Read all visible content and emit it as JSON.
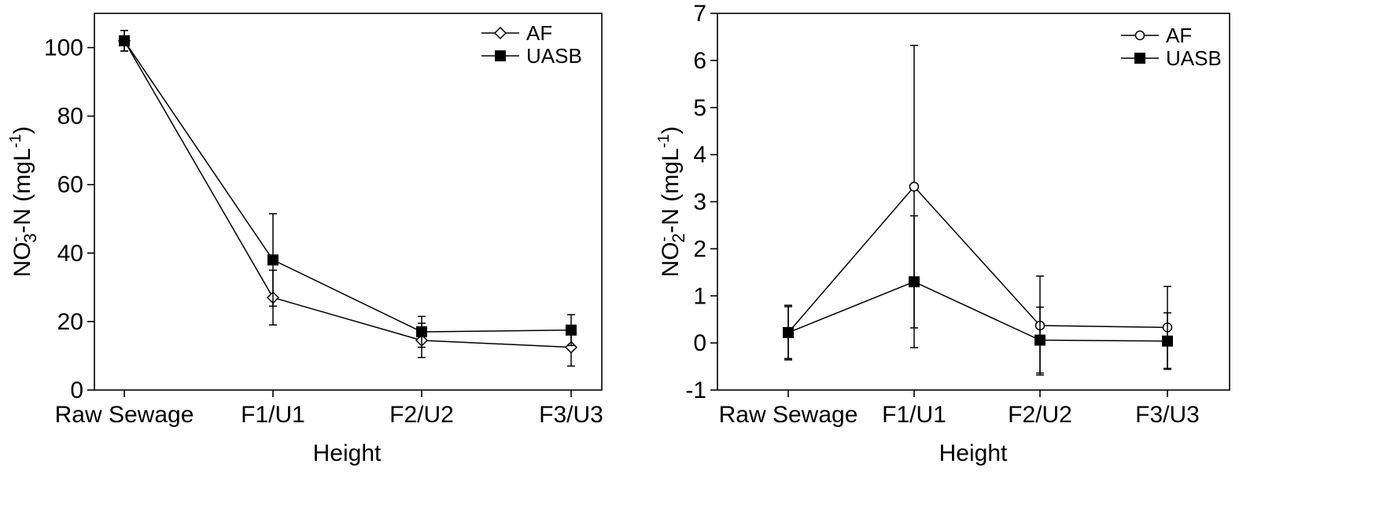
{
  "chart_data": [
    {
      "type": "line",
      "xlabel": "Height",
      "ylabel_parts": {
        "base": "NO",
        "sup": "-",
        "sub": "3",
        "rest": "-N (mgL",
        "unit_sup": "-1",
        "close": ")"
      },
      "categories": [
        "Raw Sewage",
        "F1/U1",
        "F2/U2",
        "F3/U3"
      ],
      "ylim": [
        0,
        110
      ],
      "yticks": [
        0,
        20,
        40,
        60,
        80,
        100
      ],
      "ytick_labels": [
        "0",
        "20",
        "40",
        "60",
        "80",
        "100"
      ],
      "legend_position": "top-right",
      "grid": false,
      "series": [
        {
          "name": "AF",
          "marker": "open-diamond",
          "values": [
            102,
            27,
            14.5,
            12.5
          ],
          "error": [
            3,
            8,
            5,
            5.5
          ]
        },
        {
          "name": "UASB",
          "marker": "filled-square",
          "values": [
            102,
            38,
            17,
            17.5
          ],
          "error": [
            3,
            13.5,
            4.5,
            4.5
          ]
        }
      ]
    },
    {
      "type": "line",
      "xlabel": "Height",
      "ylabel_parts": {
        "base": "NO",
        "sup": "-",
        "sub": "2",
        "rest": "-N (mgL",
        "unit_sup": "-1",
        "close": ")"
      },
      "categories": [
        "Raw Sewage",
        "F1/U1",
        "F2/U2",
        "F3/U3"
      ],
      "ylim": [
        -1,
        7
      ],
      "yticks": [
        -1,
        0,
        1,
        2,
        3,
        4,
        5,
        6,
        7
      ],
      "ytick_labels": [
        "-1",
        "0",
        "1",
        "2",
        "3",
        "4",
        "5",
        "6",
        "7"
      ],
      "legend_position": "top-right",
      "grid": false,
      "series": [
        {
          "name": "AF",
          "marker": "open-circle",
          "values": [
            0.22,
            3.32,
            0.37,
            0.33
          ],
          "error": [
            0.58,
            3.0,
            1.05,
            0.87
          ]
        },
        {
          "name": "UASB",
          "marker": "filled-square",
          "values": [
            0.22,
            1.3,
            0.06,
            0.04
          ],
          "error": [
            0.55,
            1.4,
            0.7,
            0.6
          ]
        }
      ]
    }
  ]
}
